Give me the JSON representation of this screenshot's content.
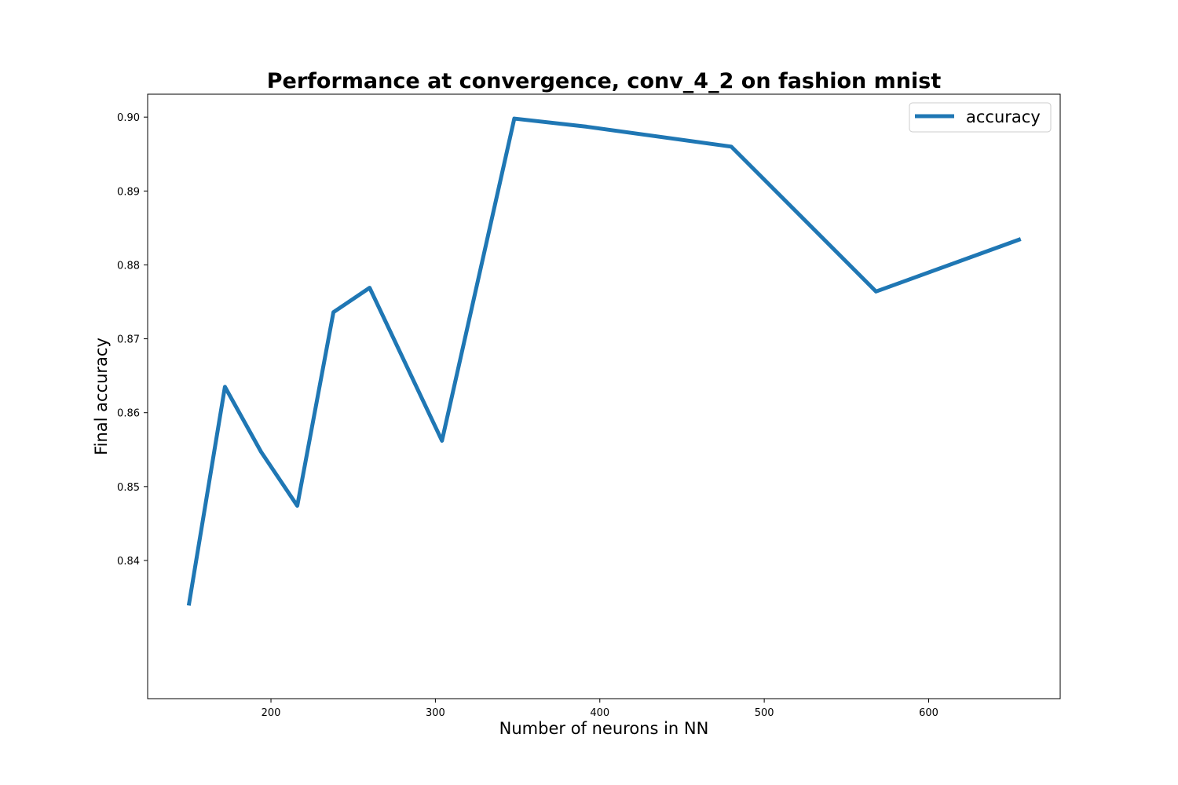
{
  "chart_data": {
    "type": "line",
    "title": "Performance at convergence, conv_4_2 on fashion mnist",
    "xlabel": "Number of neurons in NN",
    "ylabel": "Final accuracy",
    "xlim": [
      125,
      680
    ],
    "ylim": [
      0.8213,
      0.9031
    ],
    "xticks": [
      200,
      300,
      400,
      500,
      600
    ],
    "xtick_labels": [
      "200",
      "300",
      "400",
      "500",
      "600"
    ],
    "yticks": [
      0.84,
      0.85,
      0.86,
      0.87,
      0.88,
      0.89,
      0.9
    ],
    "ytick_labels": [
      "0.84",
      "0.85",
      "0.86",
      "0.87",
      "0.88",
      "0.89",
      "0.90"
    ],
    "grid": false,
    "legend_position": "upper right",
    "series": [
      {
        "name": "accuracy",
        "color": "#1f77b4",
        "x": [
          150,
          172,
          194,
          216,
          238,
          260,
          304,
          348,
          392,
          480,
          568,
          656
        ],
        "y": [
          0.8339,
          0.8635,
          0.8547,
          0.8474,
          0.8736,
          0.8769,
          0.8562,
          0.8998,
          0.8987,
          0.896,
          0.8764,
          0.8835
        ]
      }
    ]
  }
}
